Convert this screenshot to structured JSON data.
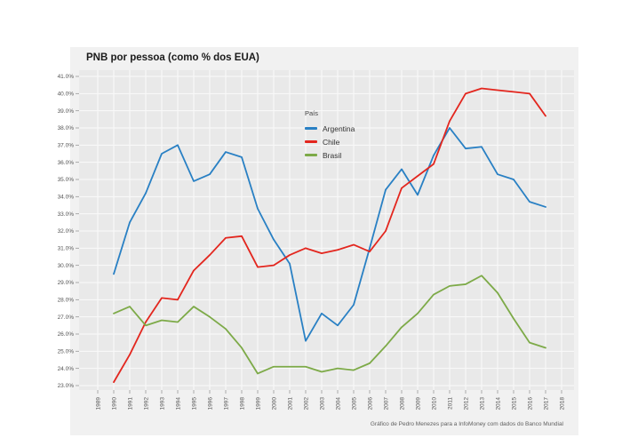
{
  "chart": {
    "title": "PNB por pessoa (como % dos EUA)",
    "legend_title": "País",
    "caption": "Gráfico de Pedro Menezes para a InfoMoney com dados do Banco Mundial"
  },
  "chart_data": {
    "type": "line",
    "title": "PNB por pessoa (como % dos EUA)",
    "xlabel": "",
    "ylabel": "",
    "x_axis_ticks": [
      1989,
      1990,
      1991,
      1992,
      1993,
      1994,
      1995,
      1996,
      1997,
      1998,
      1999,
      2000,
      2001,
      2002,
      2003,
      2004,
      2005,
      2006,
      2007,
      2008,
      2009,
      2010,
      2011,
      2012,
      2013,
      2014,
      2015,
      2016,
      2017,
      2018
    ],
    "y_axis_tick_labels": [
      "23.0%",
      "24.0%",
      "25.0%",
      "26.0%",
      "27.0%",
      "28.0%",
      "29.0%",
      "30.0%",
      "31.0%",
      "32.0%",
      "33.0%",
      "34.0%",
      "35.0%",
      "36.0%",
      "37.0%",
      "38.0%",
      "39.0%",
      "40.0%",
      "41.0%"
    ],
    "ylim": [
      23.0,
      41.0
    ],
    "xlim": [
      1989,
      2018
    ],
    "grid": true,
    "legend_position": "inside-right-upper",
    "x": [
      1990,
      1991,
      1992,
      1993,
      1994,
      1995,
      1996,
      1997,
      1998,
      1999,
      2000,
      2001,
      2002,
      2003,
      2004,
      2005,
      2006,
      2007,
      2008,
      2009,
      2010,
      2011,
      2012,
      2013,
      2014,
      2015,
      2016,
      2017
    ],
    "series": [
      {
        "name": "Argentina",
        "color": "#2980c4",
        "values": [
          29.5,
          32.5,
          34.2,
          36.5,
          37.0,
          34.9,
          35.3,
          36.6,
          36.3,
          33.3,
          31.5,
          30.1,
          25.6,
          27.2,
          26.5,
          27.7,
          31.0,
          34.4,
          35.6,
          34.1,
          36.4,
          38.0,
          36.8,
          36.9,
          35.3,
          35.0,
          33.7,
          33.4
        ]
      },
      {
        "name": "Chile",
        "color": "#e3261e",
        "values": [
          23.2,
          24.8,
          26.7,
          28.1,
          28.0,
          29.7,
          30.6,
          31.6,
          31.7,
          29.9,
          30.0,
          30.6,
          31.0,
          30.7,
          30.9,
          31.2,
          30.8,
          32.0,
          34.5,
          35.2,
          35.9,
          38.4,
          40.0,
          40.3,
          40.2,
          40.1,
          40.0,
          38.7
        ]
      },
      {
        "name": "Brasil",
        "color": "#7daa48",
        "values": [
          27.2,
          27.6,
          26.5,
          26.8,
          26.7,
          27.6,
          27.0,
          26.3,
          25.2,
          23.7,
          24.1,
          24.1,
          24.1,
          23.8,
          24.0,
          23.9,
          24.3,
          25.3,
          26.4,
          27.2,
          28.3,
          28.8,
          28.9,
          29.4,
          28.4,
          26.9,
          25.5,
          25.2
        ]
      }
    ]
  },
  "colors": {
    "page_bg": "#ffffff",
    "card_bg": "#f1f1f1",
    "panel_bg": "#e9e9e9",
    "gridline": "#fafafa",
    "tick_mark": "#9a9a9a",
    "tick_text": "#555555"
  }
}
